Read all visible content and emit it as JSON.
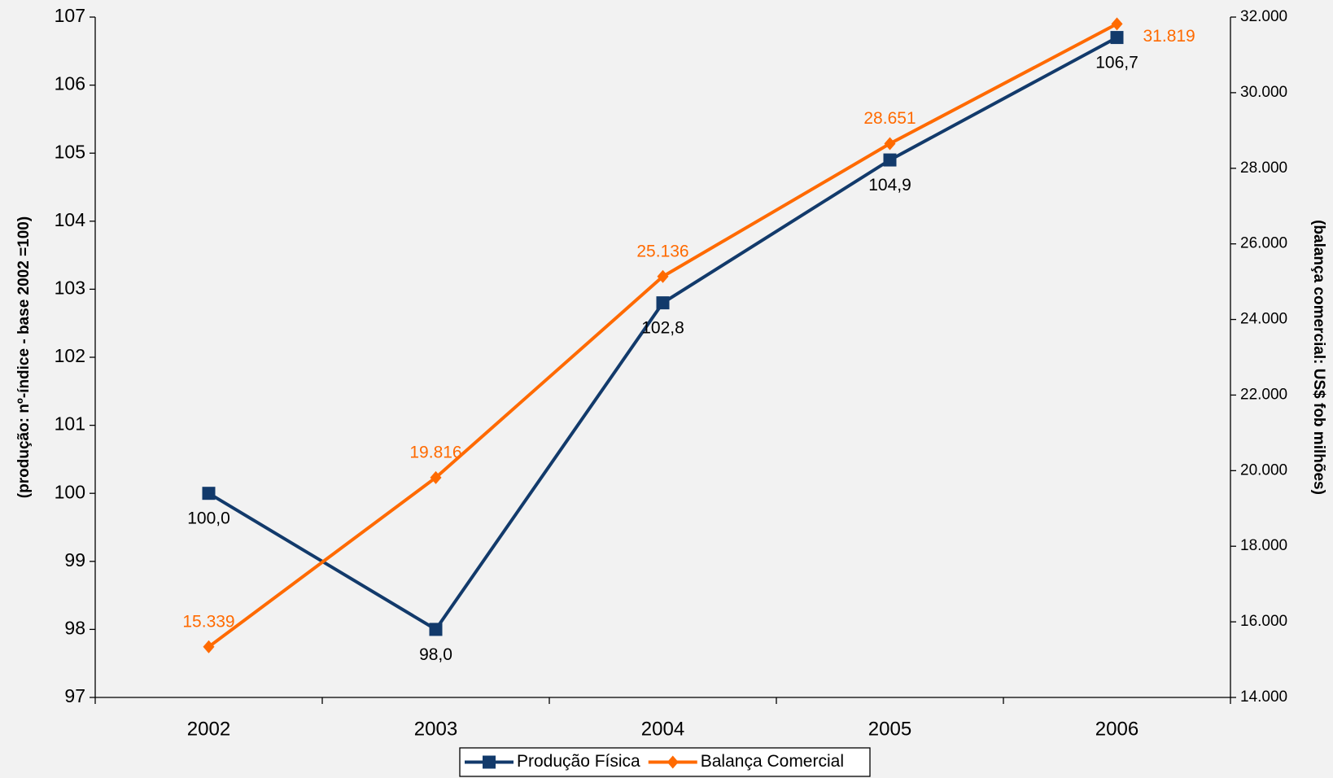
{
  "chart_data": {
    "type": "line",
    "categories": [
      "2002",
      "2003",
      "2004",
      "2005",
      "2006"
    ],
    "series": [
      {
        "name": "Produção Física",
        "color": "#123a6b",
        "values": [
          100.0,
          98.0,
          102.8,
          104.9,
          106.7
        ],
        "value_labels": [
          "100,0",
          "98,0",
          "102,8",
          "104,9",
          "106,7"
        ]
      },
      {
        "name": "Balança Comercial",
        "color": "#ff6a00",
        "axis": "y2",
        "values": [
          15339,
          19816,
          25136,
          28651,
          31819
        ],
        "value_labels": [
          "15.339",
          "19.816",
          "25.136",
          "28.651",
          "31.819"
        ]
      }
    ],
    "ylabel": "(produção: nº-índice - base 2002 =100)",
    "y2label": "(balança comercial: US$ fob milhões)",
    "ylim": [
      97,
      107
    ],
    "yticks": [
      97,
      98,
      99,
      100,
      101,
      102,
      103,
      104,
      105,
      106,
      107
    ],
    "y2lim": [
      14000,
      32000
    ],
    "y2ticks": [
      {
        "value": 14000,
        "label": "14.000"
      },
      {
        "value": 16000,
        "label": "16.000"
      },
      {
        "value": 18000,
        "label": "18.000"
      },
      {
        "value": 20000,
        "label": "20.000"
      },
      {
        "value": 22000,
        "label": "22.000"
      },
      {
        "value": 24000,
        "label": "24.000"
      },
      {
        "value": 26000,
        "label": "26.000"
      },
      {
        "value": 28000,
        "label": "28.000"
      },
      {
        "value": 30000,
        "label": "30.000"
      },
      {
        "value": 32000,
        "label": "32.000"
      }
    ],
    "legend": "bottom"
  }
}
